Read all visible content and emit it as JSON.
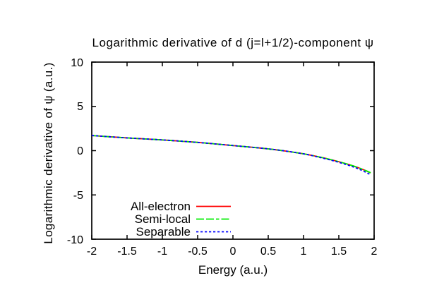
{
  "chart_data": {
    "type": "line",
    "title": "Logarithmic derivative of d (j=l+1/2)-component ψ",
    "xlabel": "Energy (a.u.)",
    "ylabel": "Logarithmic derivative of ψ (a.u.)",
    "xlim": [
      -2,
      2
    ],
    "ylim": [
      -10,
      10
    ],
    "xticks": [
      -2,
      -1.5,
      -1,
      -0.5,
      0,
      0.5,
      1,
      1.5,
      2
    ],
    "xtick_labels": [
      "-2",
      "-1.5",
      "-1",
      "-0.5",
      "0",
      "0.5",
      "1",
      "1.5",
      "2"
    ],
    "yticks": [
      -10,
      -5,
      0,
      5,
      10
    ],
    "ytick_labels": [
      "-10",
      "-5",
      "0",
      "5",
      "10"
    ],
    "grid": false,
    "legend_position": "inside-bottom-center",
    "frame_color": "#000000",
    "text_color": "#000000",
    "background_color": "#ffffff",
    "x": [
      -2.0,
      -1.95,
      -1.9,
      -1.85,
      -1.8,
      -1.75,
      -1.7,
      -1.65,
      -1.6,
      -1.55,
      -1.5,
      -1.45,
      -1.4,
      -1.35,
      -1.3,
      -1.25,
      -1.2,
      -1.15,
      -1.1,
      -1.05,
      -1.0,
      -0.95,
      -0.9,
      -0.85,
      -0.8,
      -0.75,
      -0.7,
      -0.65,
      -0.6,
      -0.55,
      -0.5,
      -0.45,
      -0.4,
      -0.35,
      -0.3,
      -0.25,
      -0.2,
      -0.15,
      -0.1,
      -0.05,
      0.0,
      0.05,
      0.1,
      0.15,
      0.2,
      0.25,
      0.3,
      0.35,
      0.4,
      0.45,
      0.5,
      0.55,
      0.6,
      0.65,
      0.7,
      0.75,
      0.8,
      0.85,
      0.9,
      0.95,
      1.0,
      1.05,
      1.1,
      1.15,
      1.2,
      1.25,
      1.3,
      1.35,
      1.4,
      1.45,
      1.5,
      1.55,
      1.6,
      1.65,
      1.7,
      1.75,
      1.8,
      1.85,
      1.9,
      1.95
    ],
    "series": [
      {
        "name": "All-electron",
        "color": "#ff0000",
        "style": "solid",
        "y": [
          1.71,
          1.681,
          1.653,
          1.625,
          1.597,
          1.57,
          1.543,
          1.517,
          1.491,
          1.465,
          1.44,
          1.416,
          1.392,
          1.37,
          1.348,
          1.326,
          1.303,
          1.281,
          1.258,
          1.235,
          1.21,
          1.185,
          1.159,
          1.132,
          1.105,
          1.078,
          1.049,
          1.021,
          0.991,
          0.961,
          0.93,
          0.898,
          0.865,
          0.83,
          0.795,
          0.759,
          0.722,
          0.686,
          0.649,
          0.612,
          0.575,
          0.539,
          0.504,
          0.469,
          0.434,
          0.398,
          0.362,
          0.324,
          0.285,
          0.244,
          0.2,
          0.154,
          0.106,
          0.055,
          0.003,
          -0.052,
          -0.109,
          -0.169,
          -0.23,
          -0.294,
          -0.36,
          -0.431,
          -0.507,
          -0.588,
          -0.673,
          -0.76,
          -0.85,
          -0.944,
          -1.042,
          -1.144,
          -1.25,
          -1.359,
          -1.472,
          -1.591,
          -1.716,
          -1.85,
          -1.996,
          -2.154,
          -2.322,
          -2.5
        ]
      },
      {
        "name": "Semi-local",
        "color": "#00ee00",
        "style": "dash-dot",
        "y": [
          1.71,
          1.681,
          1.653,
          1.625,
          1.597,
          1.57,
          1.543,
          1.517,
          1.491,
          1.465,
          1.44,
          1.416,
          1.392,
          1.37,
          1.348,
          1.326,
          1.303,
          1.281,
          1.258,
          1.235,
          1.21,
          1.185,
          1.159,
          1.132,
          1.105,
          1.078,
          1.049,
          1.021,
          0.991,
          0.961,
          0.93,
          0.898,
          0.865,
          0.83,
          0.795,
          0.759,
          0.722,
          0.686,
          0.649,
          0.612,
          0.575,
          0.539,
          0.504,
          0.469,
          0.434,
          0.398,
          0.362,
          0.324,
          0.285,
          0.244,
          0.2,
          0.154,
          0.106,
          0.055,
          0.003,
          -0.052,
          -0.109,
          -0.169,
          -0.23,
          -0.294,
          -0.36,
          -0.431,
          -0.507,
          -0.588,
          -0.673,
          -0.76,
          -0.85,
          -0.944,
          -1.042,
          -1.144,
          -1.25,
          -1.359,
          -1.472,
          -1.591,
          -1.716,
          -1.85,
          -1.996,
          -2.154,
          -2.322,
          -2.5
        ]
      },
      {
        "name": "Separable",
        "color": "#0000ff",
        "style": "dotted",
        "y": [
          1.71,
          1.681,
          1.653,
          1.625,
          1.597,
          1.57,
          1.543,
          1.517,
          1.491,
          1.465,
          1.44,
          1.416,
          1.392,
          1.37,
          1.348,
          1.326,
          1.303,
          1.281,
          1.258,
          1.235,
          1.21,
          1.185,
          1.159,
          1.132,
          1.105,
          1.078,
          1.049,
          1.021,
          0.991,
          0.961,
          0.93,
          0.898,
          0.865,
          0.83,
          0.795,
          0.759,
          0.722,
          0.686,
          0.649,
          0.612,
          0.575,
          0.539,
          0.504,
          0.469,
          0.434,
          0.398,
          0.362,
          0.324,
          0.285,
          0.244,
          0.2,
          0.154,
          0.107,
          0.057,
          0.006,
          -0.048,
          -0.105,
          -0.164,
          -0.226,
          -0.292,
          -0.36,
          -0.435,
          -0.52,
          -0.61,
          -0.704,
          -0.8,
          -0.897,
          -0.996,
          -1.1,
          -1.207,
          -1.32,
          -1.437,
          -1.558,
          -1.685,
          -1.822,
          -1.97,
          -2.134,
          -2.316,
          -2.512,
          -2.72
        ]
      }
    ]
  }
}
